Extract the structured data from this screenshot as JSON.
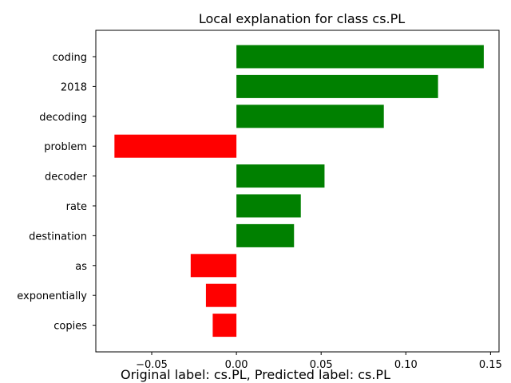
{
  "chart_data": {
    "type": "bar",
    "orientation": "horizontal",
    "title": "Local explanation for class cs.PL",
    "categories": [
      "coding",
      "2018",
      "decoding",
      "problem",
      "decoder",
      "rate",
      "destination",
      "as",
      "exponentially",
      "copies"
    ],
    "values": [
      0.146,
      0.119,
      0.087,
      -0.072,
      0.052,
      0.038,
      0.034,
      -0.027,
      -0.018,
      -0.014
    ],
    "xlim": [
      -0.083,
      0.155
    ],
    "xticks": [
      -0.05,
      0.0,
      0.05,
      0.1,
      0.15
    ],
    "xtick_labels": [
      "−0.05",
      "0.00",
      "0.05",
      "0.10",
      "0.15"
    ],
    "positive_color": "#008000",
    "negative_color": "#ff0000",
    "grid": false,
    "xlabel": "",
    "ylabel": ""
  },
  "caption": "Original label: cs.PL, Predicted label: cs.PL"
}
